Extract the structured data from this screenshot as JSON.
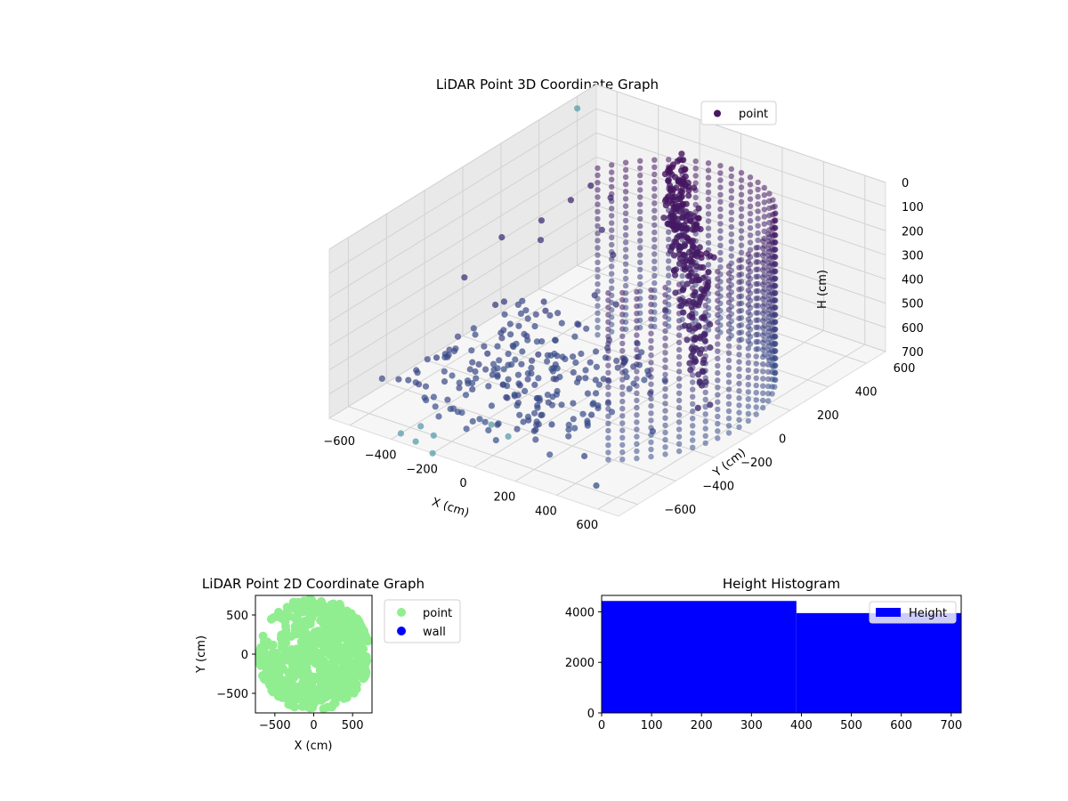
{
  "chart_data": [
    {
      "type": "scatter",
      "projection": "3d",
      "title": "LiDAR Point 3D Coordinate Graph",
      "xlabel": "X (cm)",
      "ylabel": "Y (cm)",
      "zlabel": "H (cm)",
      "xlim": [
        -700,
        700
      ],
      "ylim": [
        -700,
        700
      ],
      "zlim": [
        0,
        700
      ],
      "z_inverted": true,
      "xticks": [
        "−600",
        "−400",
        "−200",
        "0",
        "200",
        "400",
        "600"
      ],
      "yticks": [
        "−600",
        "−400",
        "−200",
        "0",
        "200",
        "400",
        "600"
      ],
      "zticks": [
        "0",
        "100",
        "200",
        "300",
        "400",
        "500",
        "600",
        "700"
      ],
      "grid": true,
      "legend": {
        "placement": "upper-right",
        "entries": [
          "point"
        ]
      },
      "colormap": "viridis-dark",
      "series": [
        {
          "name": "point",
          "color": "#46185f",
          "wall_arc": {
            "center": [
              0,
              0
            ],
            "radius_cm": 650,
            "angle_range_deg": [
              -60,
              150
            ],
            "height_range_cm": [
              0,
              700
            ]
          },
          "inner_sheet": {
            "x_range": [
              -100,
              500
            ],
            "y_range": [
              -350,
              450
            ],
            "height_range_cm": [
              0,
              650
            ]
          },
          "points": [
            [
              -650,
              150,
              350
            ],
            [
              -600,
              300,
              420
            ],
            [
              -550,
              250,
              300
            ],
            [
              -500,
              0,
              500
            ],
            [
              -450,
              -100,
              450
            ],
            [
              -400,
              100,
              520
            ],
            [
              -350,
              -250,
              550
            ],
            [
              -300,
              0,
              480
            ],
            [
              -250,
              300,
              380
            ],
            [
              -200,
              150,
              460
            ],
            [
              -150,
              -200,
              520
            ],
            [
              -100,
              -350,
              560
            ],
            [
              -50,
              100,
              430
            ],
            [
              0,
              -150,
              600
            ],
            [
              50,
              250,
              500
            ],
            [
              100,
              -400,
              640
            ],
            [
              150,
              0,
              540
            ],
            [
              200,
              -300,
              620
            ],
            [
              250,
              200,
              580
            ],
            [
              300,
              -100,
              600
            ],
            [
              350,
              -500,
              650
            ],
            [
              400,
              50,
              600
            ],
            [
              450,
              -250,
              640
            ],
            [
              500,
              -600,
              680
            ],
            [
              -550,
              -300,
              600
            ],
            [
              -500,
              350,
              250
            ],
            [
              -450,
              400,
              200
            ],
            [
              -400,
              450,
              260
            ],
            [
              -600,
              -100,
              380
            ],
            [
              -350,
              350,
              330
            ]
          ],
          "outlier_points": [
            [
              -400,
              -650,
              700
            ],
            [
              -300,
              -680,
              690
            ],
            [
              -200,
              -700,
              700
            ],
            [
              -350,
              -600,
              680
            ],
            [
              -250,
              -640,
              670
            ],
            [
              -700,
              600,
              50
            ],
            [
              -100,
              -500,
              650
            ],
            [
              0,
              -520,
              660
            ]
          ]
        }
      ]
    },
    {
      "type": "scatter",
      "title": "LiDAR Point 2D Coordinate Graph",
      "xlabel": "X (cm)",
      "ylabel": "Y (cm)",
      "xlim": [
        -750,
        750
      ],
      "ylim": [
        -750,
        750
      ],
      "xticks": [
        "−500",
        "0",
        "500"
      ],
      "yticks": [
        "−500",
        "0",
        "500"
      ],
      "legend": {
        "placement": "outside-right",
        "entries": [
          "point",
          "wall"
        ]
      },
      "series": [
        {
          "name": "point",
          "color": "#90ee90",
          "region": {
            "x_range": [
              -700,
              700
            ],
            "y_range": [
              -700,
              700
            ]
          }
        },
        {
          "name": "wall",
          "color": "#0000ff",
          "points": []
        }
      ]
    },
    {
      "type": "histogram",
      "title": "Height Histogram",
      "xlim": [
        0,
        720
      ],
      "ylim": [
        0,
        4650
      ],
      "xticks": [
        "0",
        "100",
        "200",
        "300",
        "400",
        "500",
        "600",
        "700"
      ],
      "yticks": [
        "0",
        "2000",
        "4000"
      ],
      "legend": {
        "placement": "upper-right",
        "entries": [
          "Height"
        ]
      },
      "series": [
        {
          "name": "Height",
          "color": "#0000ff",
          "bins": [
            {
              "x0": 0,
              "x1": 390,
              "count": 4430
            },
            {
              "x0": 390,
              "x1": 720,
              "count": 3950
            }
          ]
        }
      ]
    }
  ]
}
